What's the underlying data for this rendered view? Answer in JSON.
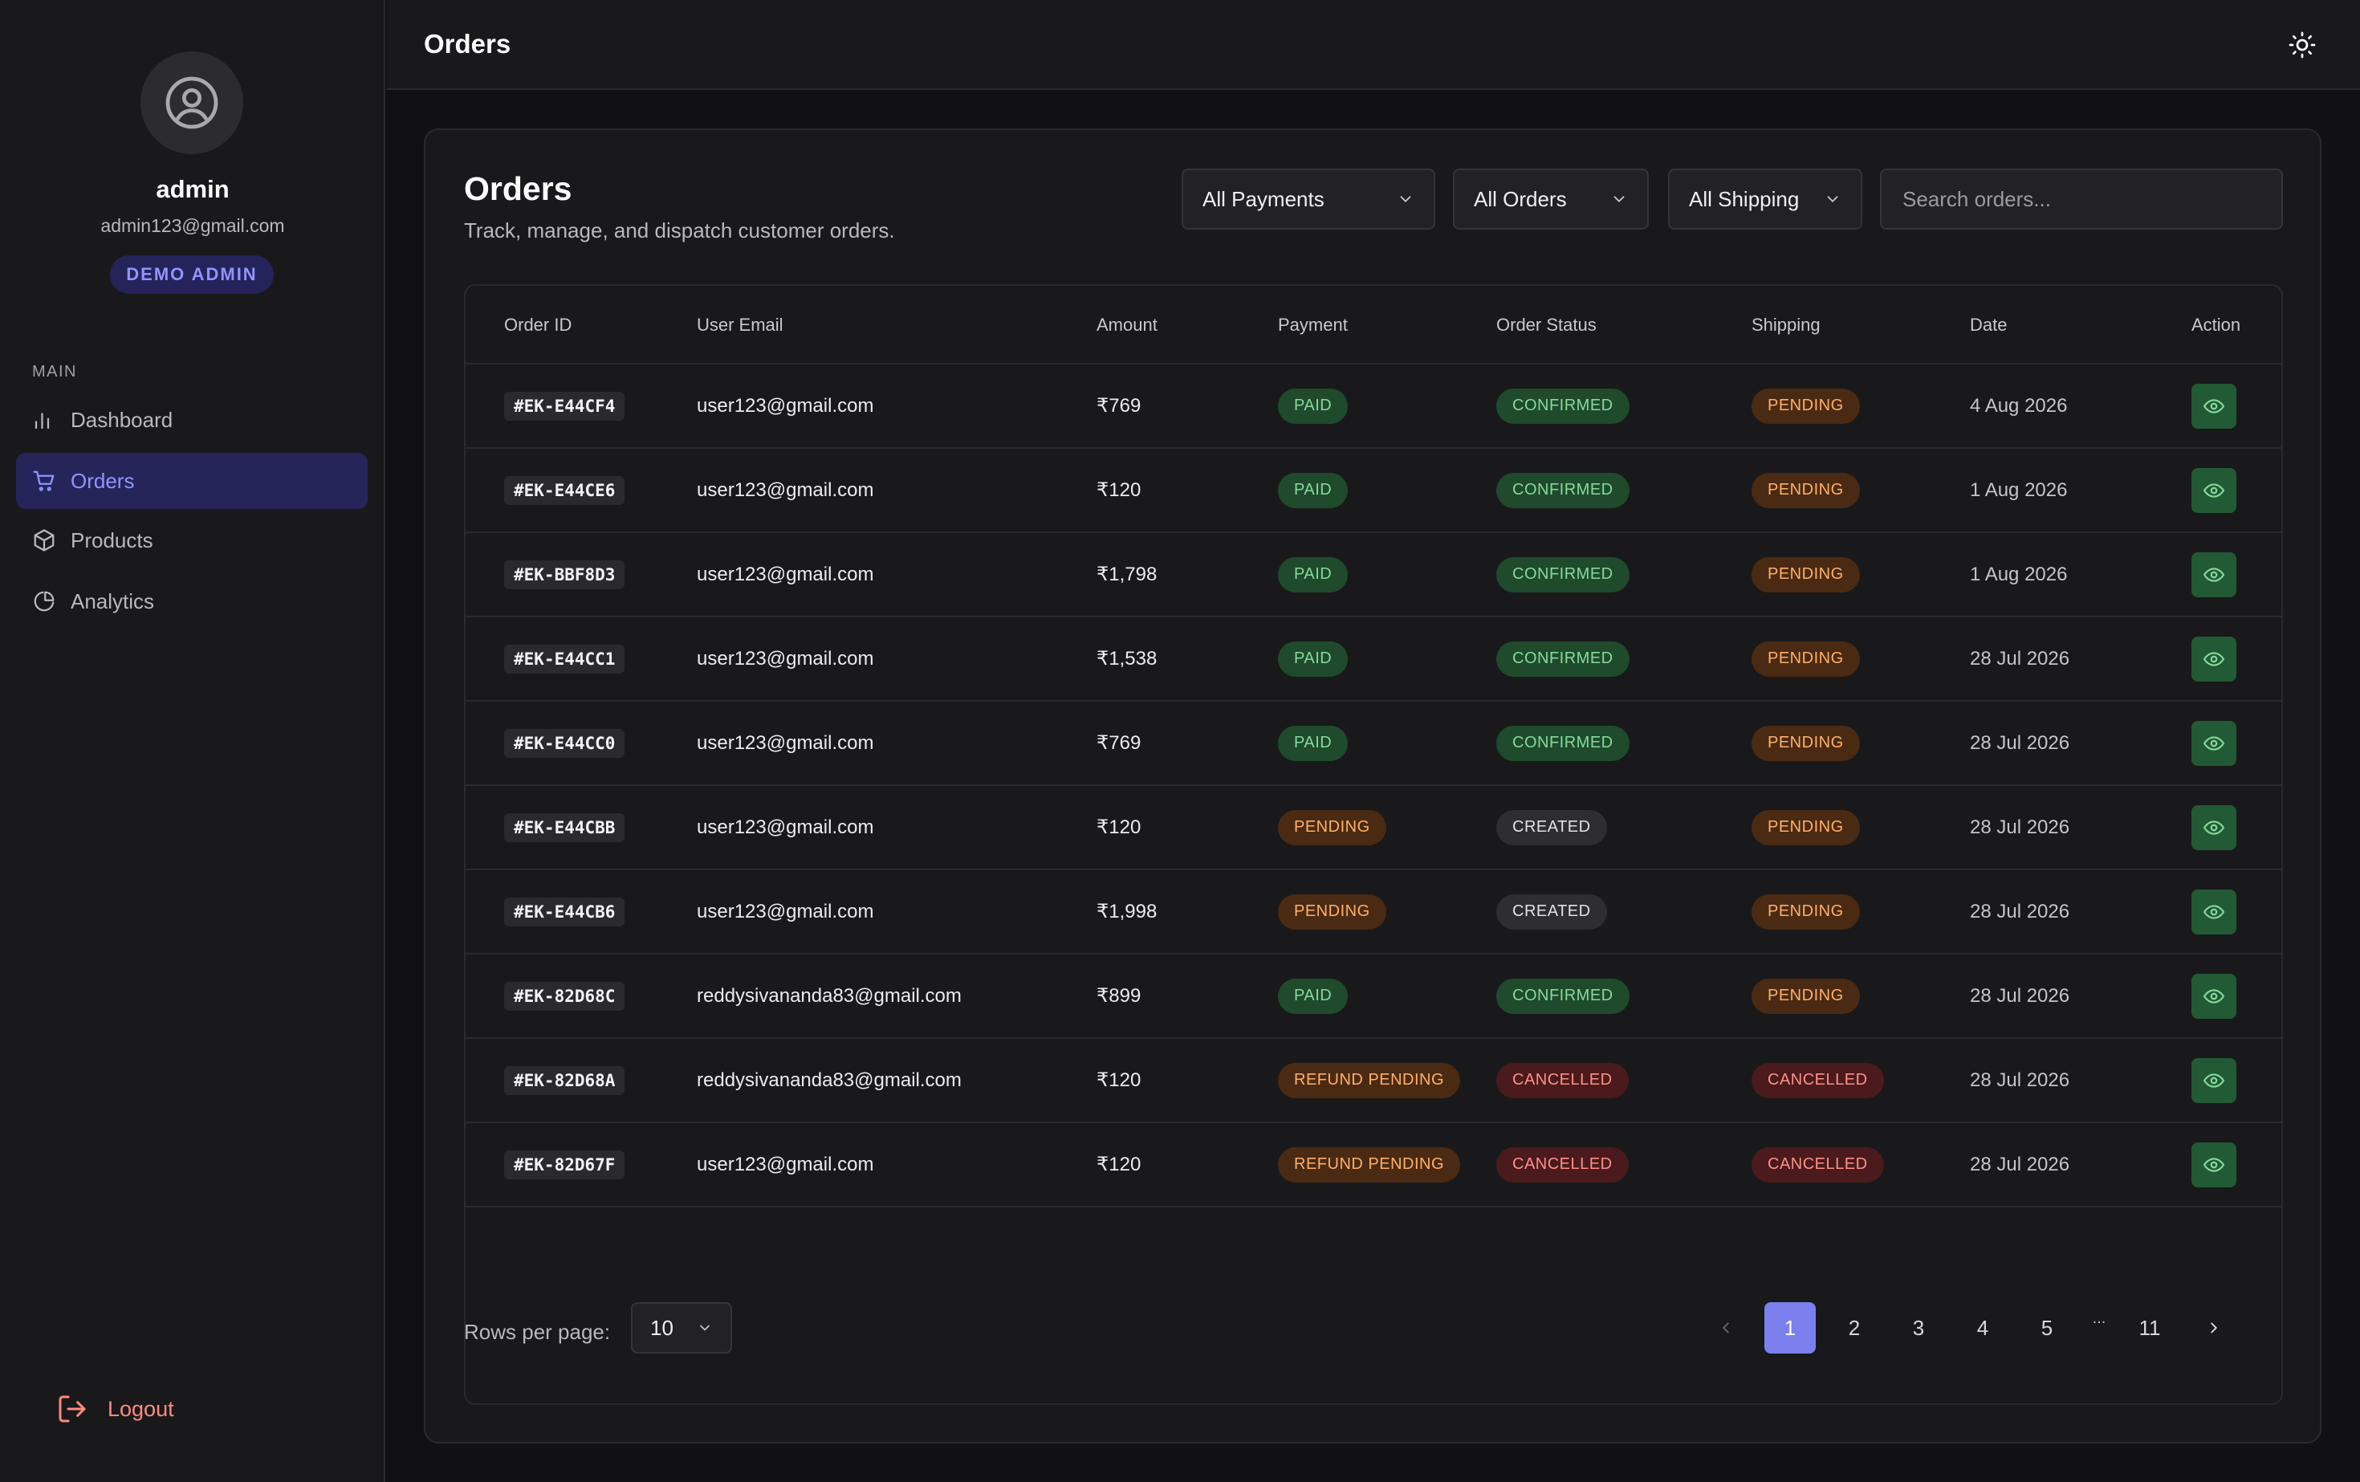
{
  "profile": {
    "name": "admin",
    "email": "admin123@gmail.com",
    "role": "DEMO ADMIN"
  },
  "sidebar": {
    "section_label": "MAIN",
    "items": [
      {
        "label": "Dashboard",
        "icon": "bar-chart-icon",
        "active": false
      },
      {
        "label": "Orders",
        "icon": "cart-icon",
        "active": true
      },
      {
        "label": "Products",
        "icon": "box-icon",
        "active": false
      },
      {
        "label": "Analytics",
        "icon": "pie-chart-icon",
        "active": false
      }
    ],
    "logout_label": "Logout"
  },
  "header": {
    "title": "Orders",
    "theme_icon": "sun-icon"
  },
  "main": {
    "title": "Orders",
    "subtitle": "Track, manage, and dispatch customer orders.",
    "filters": {
      "payment": "All Payments",
      "orders": "All Orders",
      "shipping": "All Shipping",
      "search_placeholder": "Search orders..."
    },
    "columns": [
      "Order ID",
      "User Email",
      "Amount",
      "Payment",
      "Order Status",
      "Shipping",
      "Date",
      "Action"
    ],
    "rows": [
      {
        "id": "#EK-E44CF4",
        "email": "user123@gmail.com",
        "amount": "₹769",
        "payment": "PAID",
        "status": "CONFIRMED",
        "shipping": "PENDING",
        "date": "4 Aug 2026"
      },
      {
        "id": "#EK-E44CE6",
        "email": "user123@gmail.com",
        "amount": "₹120",
        "payment": "PAID",
        "status": "CONFIRMED",
        "shipping": "PENDING",
        "date": "1 Aug 2026"
      },
      {
        "id": "#EK-BBF8D3",
        "email": "user123@gmail.com",
        "amount": "₹1,798",
        "payment": "PAID",
        "status": "CONFIRMED",
        "shipping": "PENDING",
        "date": "1 Aug 2026"
      },
      {
        "id": "#EK-E44CC1",
        "email": "user123@gmail.com",
        "amount": "₹1,538",
        "payment": "PAID",
        "status": "CONFIRMED",
        "shipping": "PENDING",
        "date": "28 Jul 2026"
      },
      {
        "id": "#EK-E44CC0",
        "email": "user123@gmail.com",
        "amount": "₹769",
        "payment": "PAID",
        "status": "CONFIRMED",
        "shipping": "PENDING",
        "date": "28 Jul 2026"
      },
      {
        "id": "#EK-E44CBB",
        "email": "user123@gmail.com",
        "amount": "₹120",
        "payment": "PENDING",
        "status": "CREATED",
        "shipping": "PENDING",
        "date": "28 Jul 2026"
      },
      {
        "id": "#EK-E44CB6",
        "email": "user123@gmail.com",
        "amount": "₹1,998",
        "payment": "PENDING",
        "status": "CREATED",
        "shipping": "PENDING",
        "date": "28 Jul 2026"
      },
      {
        "id": "#EK-82D68C",
        "email": "reddysivananda83@gmail.com",
        "amount": "₹899",
        "payment": "PAID",
        "status": "CONFIRMED",
        "shipping": "PENDING",
        "date": "28 Jul 2026"
      },
      {
        "id": "#EK-82D68A",
        "email": "reddysivananda83@gmail.com",
        "amount": "₹120",
        "payment": "REFUND PENDING",
        "status": "CANCELLED",
        "shipping": "CANCELLED",
        "date": "28 Jul 2026"
      },
      {
        "id": "#EK-82D67F",
        "email": "user123@gmail.com",
        "amount": "₹120",
        "payment": "REFUND PENDING",
        "status": "CANCELLED",
        "shipping": "CANCELLED",
        "date": "28 Jul 2026"
      }
    ],
    "footer": {
      "rows_label": "Rows per page:",
      "rows_value": "10",
      "pages": [
        "1",
        "2",
        "3",
        "4",
        "5"
      ],
      "ellipsis": "...",
      "last_page": "11",
      "current_page": "1"
    }
  },
  "colors": {
    "accent": "#7b80ee",
    "paid": "#86d99a",
    "pending": "#ffb066",
    "cancelled": "#ff8f8a",
    "logout": "#ff8a80"
  }
}
